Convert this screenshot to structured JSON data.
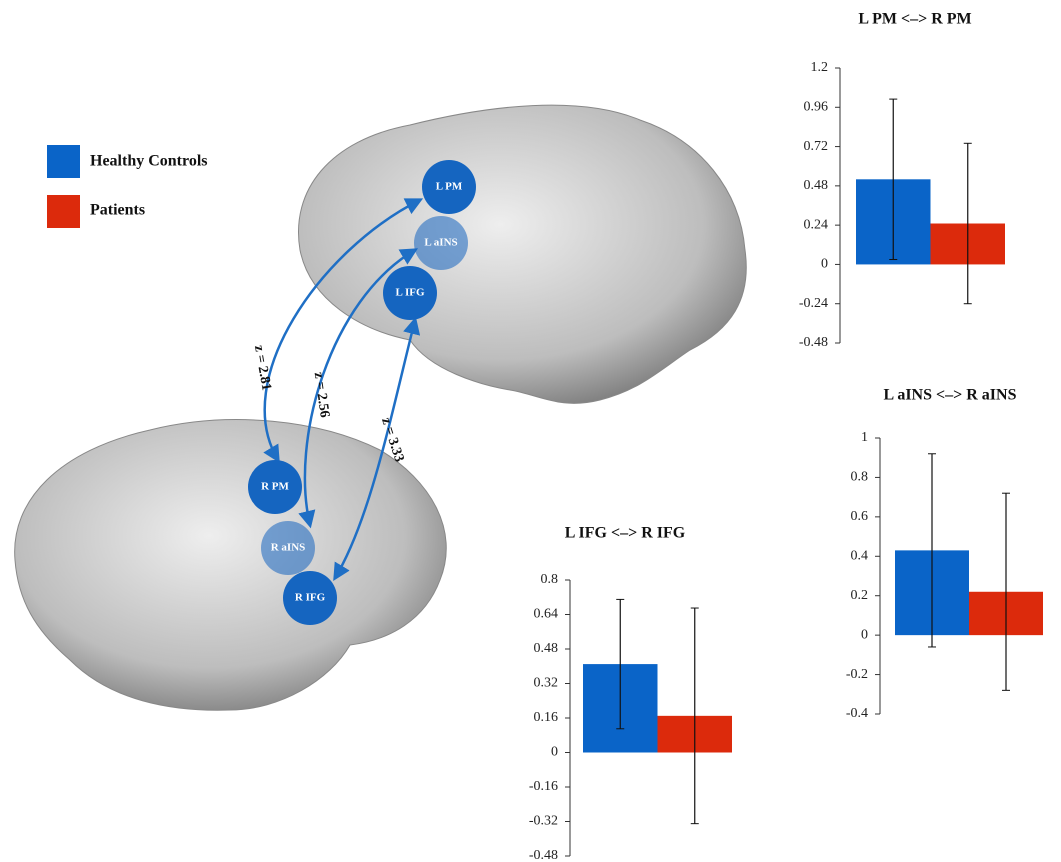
{
  "chart_data": [
    {
      "type": "bar",
      "title": "L PM <–> R PM",
      "categories": [
        null
      ],
      "series": [
        {
          "name": "Healthy Controls",
          "color": "#0a64c8",
          "values": [
            0.52
          ],
          "errors": [
            0.49
          ]
        },
        {
          "name": "Patients",
          "color": "#dc2a0c",
          "values": [
            0.25
          ],
          "errors": [
            0.49
          ]
        }
      ],
      "ylim": [
        -0.48,
        1.2
      ],
      "yticks": [
        -0.48,
        -0.24,
        0,
        0.24,
        0.48,
        0.72,
        0.96,
        1.2
      ]
    },
    {
      "type": "bar",
      "title": "L aINS <–> R aINS",
      "categories": [
        null
      ],
      "series": [
        {
          "name": "Healthy Controls",
          "color": "#0a64c8",
          "values": [
            0.43
          ],
          "errors": [
            0.49
          ]
        },
        {
          "name": "Patients",
          "color": "#dc2a0c",
          "values": [
            0.22
          ],
          "errors": [
            0.5
          ]
        }
      ],
      "ylim": [
        -0.4,
        1
      ],
      "yticks": [
        -0.4,
        -0.2,
        0,
        0.2,
        0.4,
        0.6,
        0.8,
        1
      ]
    },
    {
      "type": "bar",
      "title": "L IFG <–> R IFG",
      "categories": [
        null
      ],
      "series": [
        {
          "name": "Healthy Controls",
          "color": "#0a64c8",
          "values": [
            0.41
          ],
          "errors": [
            0.3
          ]
        },
        {
          "name": "Patients",
          "color": "#dc2a0c",
          "values": [
            0.17
          ],
          "errors": [
            0.5
          ]
        }
      ],
      "ylim": [
        -0.48,
        0.8
      ],
      "yticks": [
        -0.48,
        -0.32,
        -0.16,
        0,
        0.16,
        0.32,
        0.48,
        0.64,
        0.8
      ]
    }
  ],
  "nodes": [
    {
      "label": "L PM"
    },
    {
      "label": "L aINS"
    },
    {
      "label": "L IFG"
    },
    {
      "label": "R PM"
    },
    {
      "label": "R aINS"
    },
    {
      "label": "R IFG"
    }
  ],
  "connections": [
    {
      "label": "z = 2.81"
    },
    {
      "label": "z = 2.56"
    },
    {
      "label": "z = 3.33"
    }
  ]
}
